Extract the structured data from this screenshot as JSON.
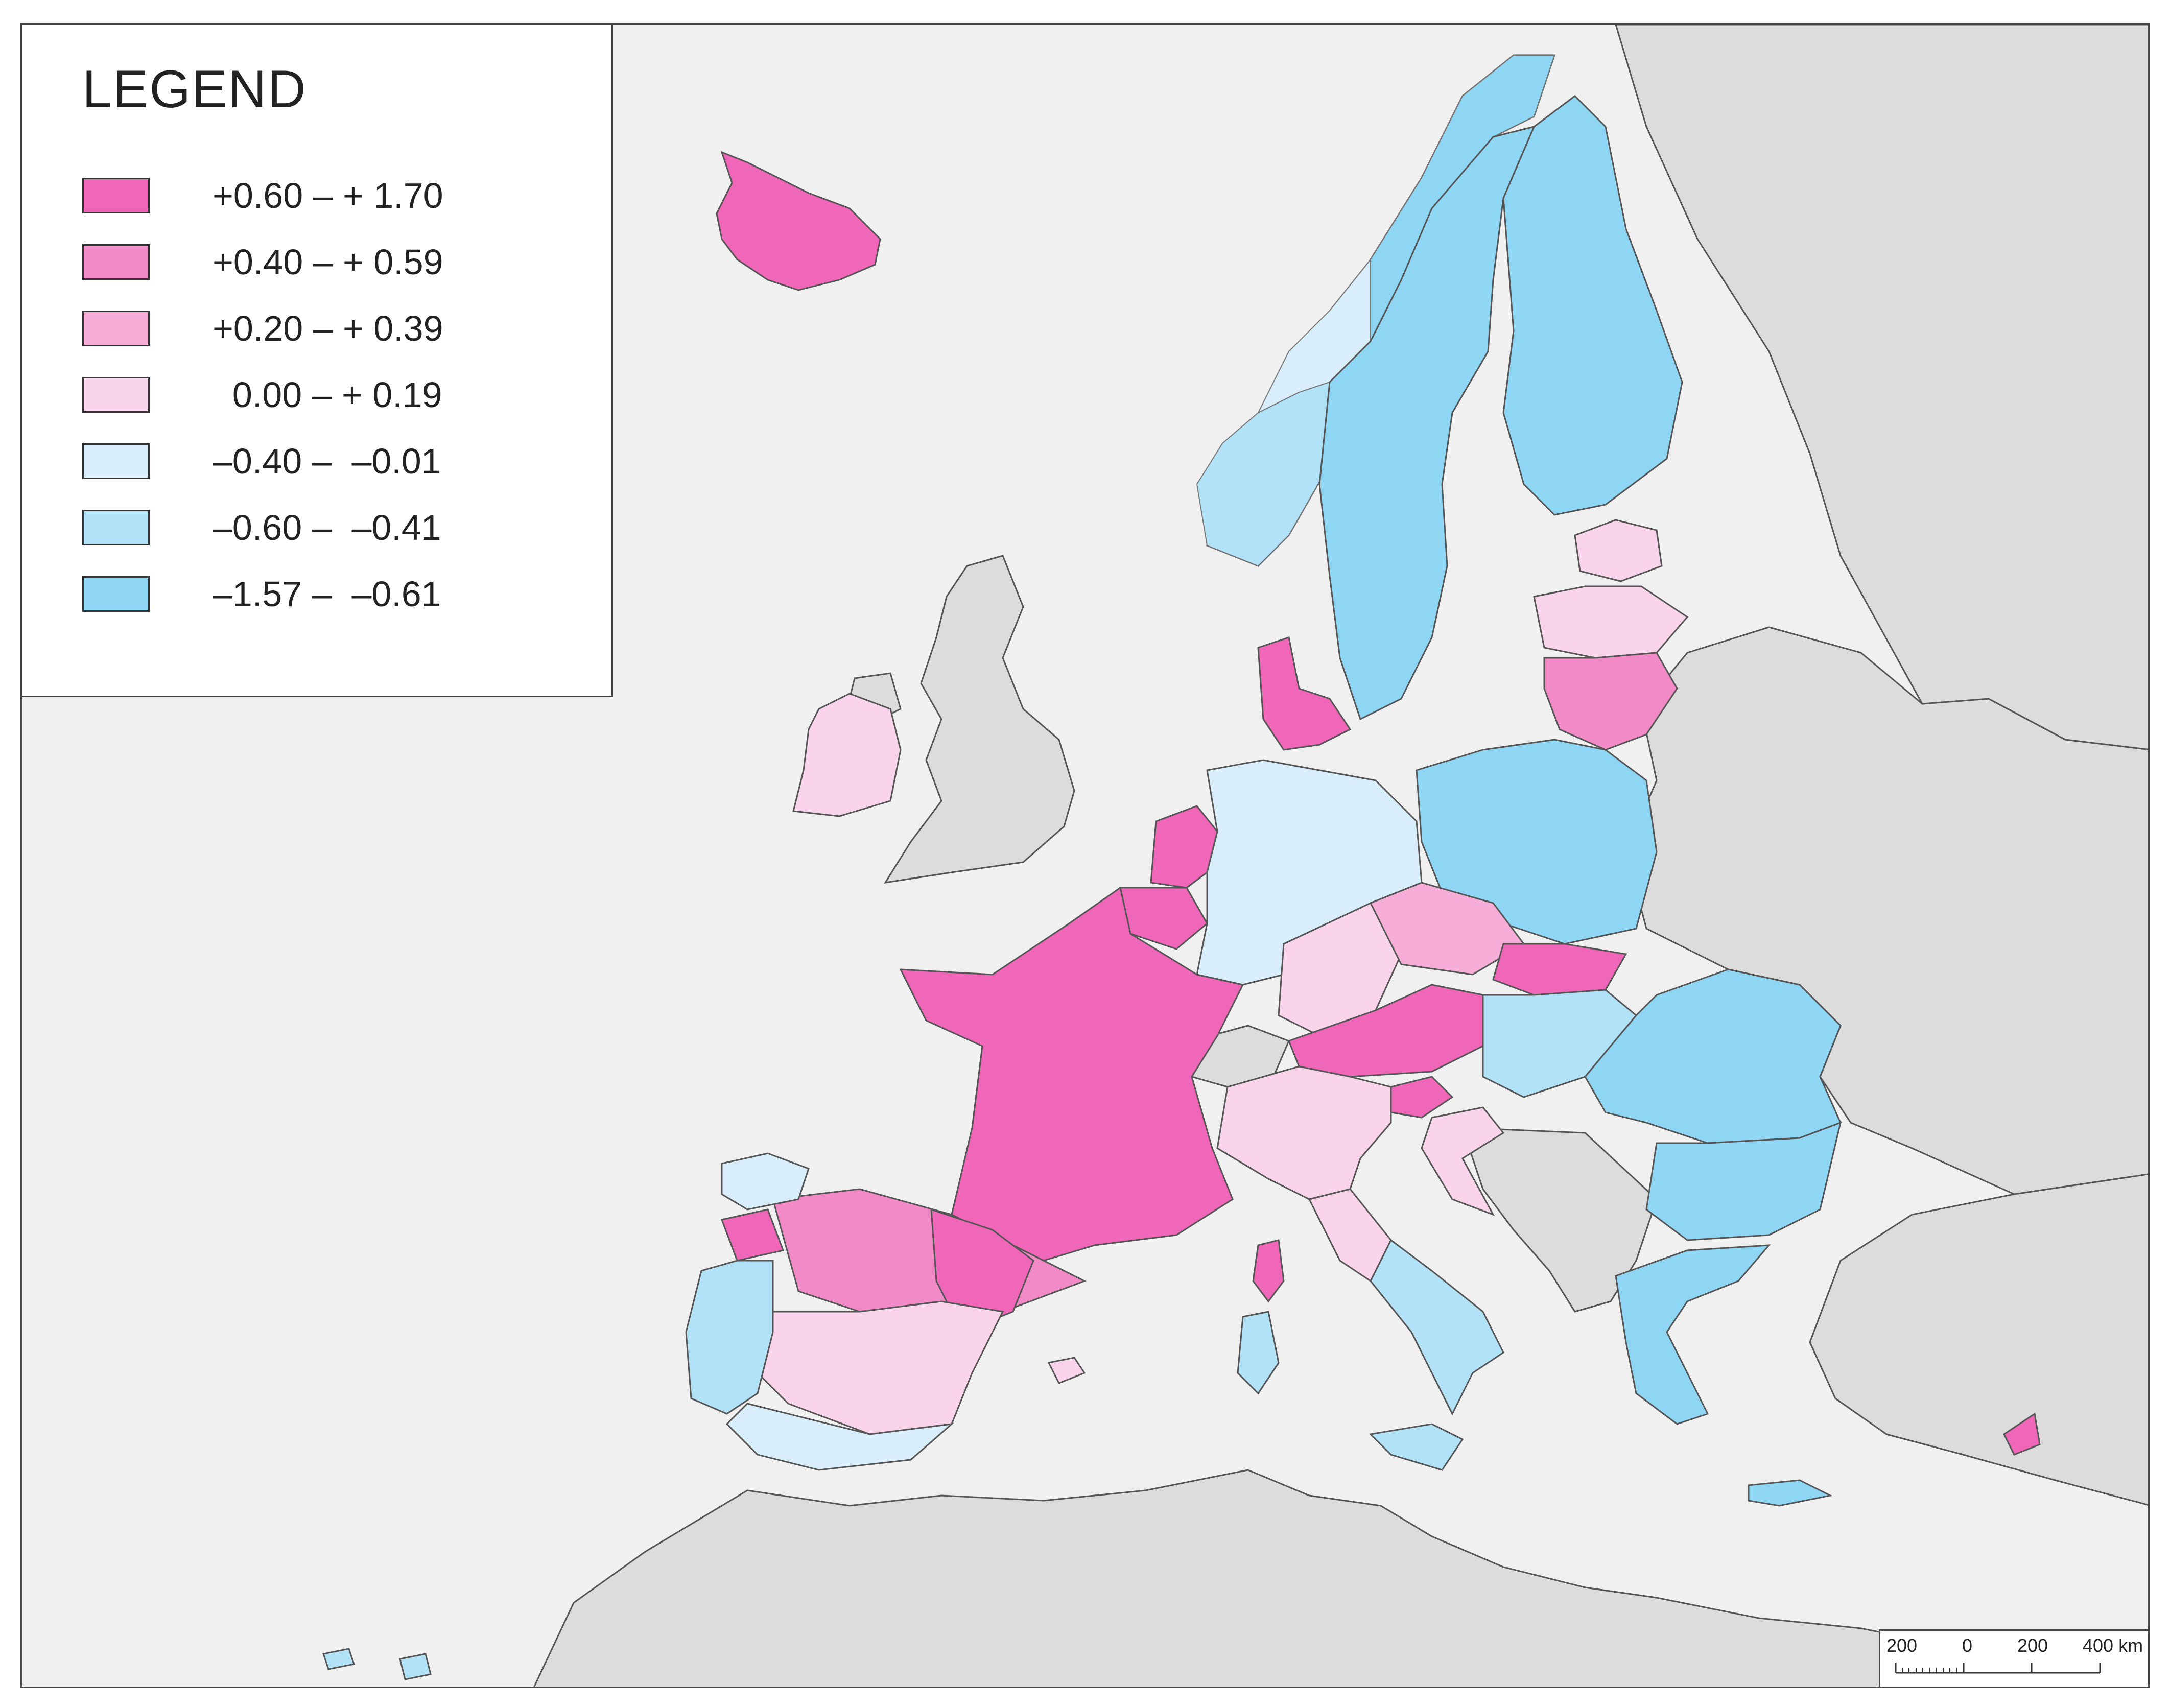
{
  "legend": {
    "title": "LEGEND",
    "classes": [
      {
        "label": "+0.60 – + 1.70",
        "color": "#f066b8"
      },
      {
        "label": "+0.40 – + 0.59",
        "color": "#f28ac8"
      },
      {
        "label": "+0.20 – + 0.39",
        "color": "#f6aed8"
      },
      {
        "label": "  0.00 – + 0.19",
        "color": "#fad4ea"
      },
      {
        "label": "–0.40 –  –0.01",
        "color": "#d8eefa"
      },
      {
        "label": "–0.60 –  –0.41",
        "color": "#b2e2f7"
      },
      {
        "label": "–1.57 –  –0.61",
        "color": "#8ed6f4"
      }
    ]
  },
  "scale_bar": {
    "labels": [
      "200",
      "0",
      "200",
      "400 km"
    ]
  },
  "colors": {
    "sea": "#f0f0f0",
    "non_eu_land": "#dcdcdc",
    "border": "#555555"
  }
}
